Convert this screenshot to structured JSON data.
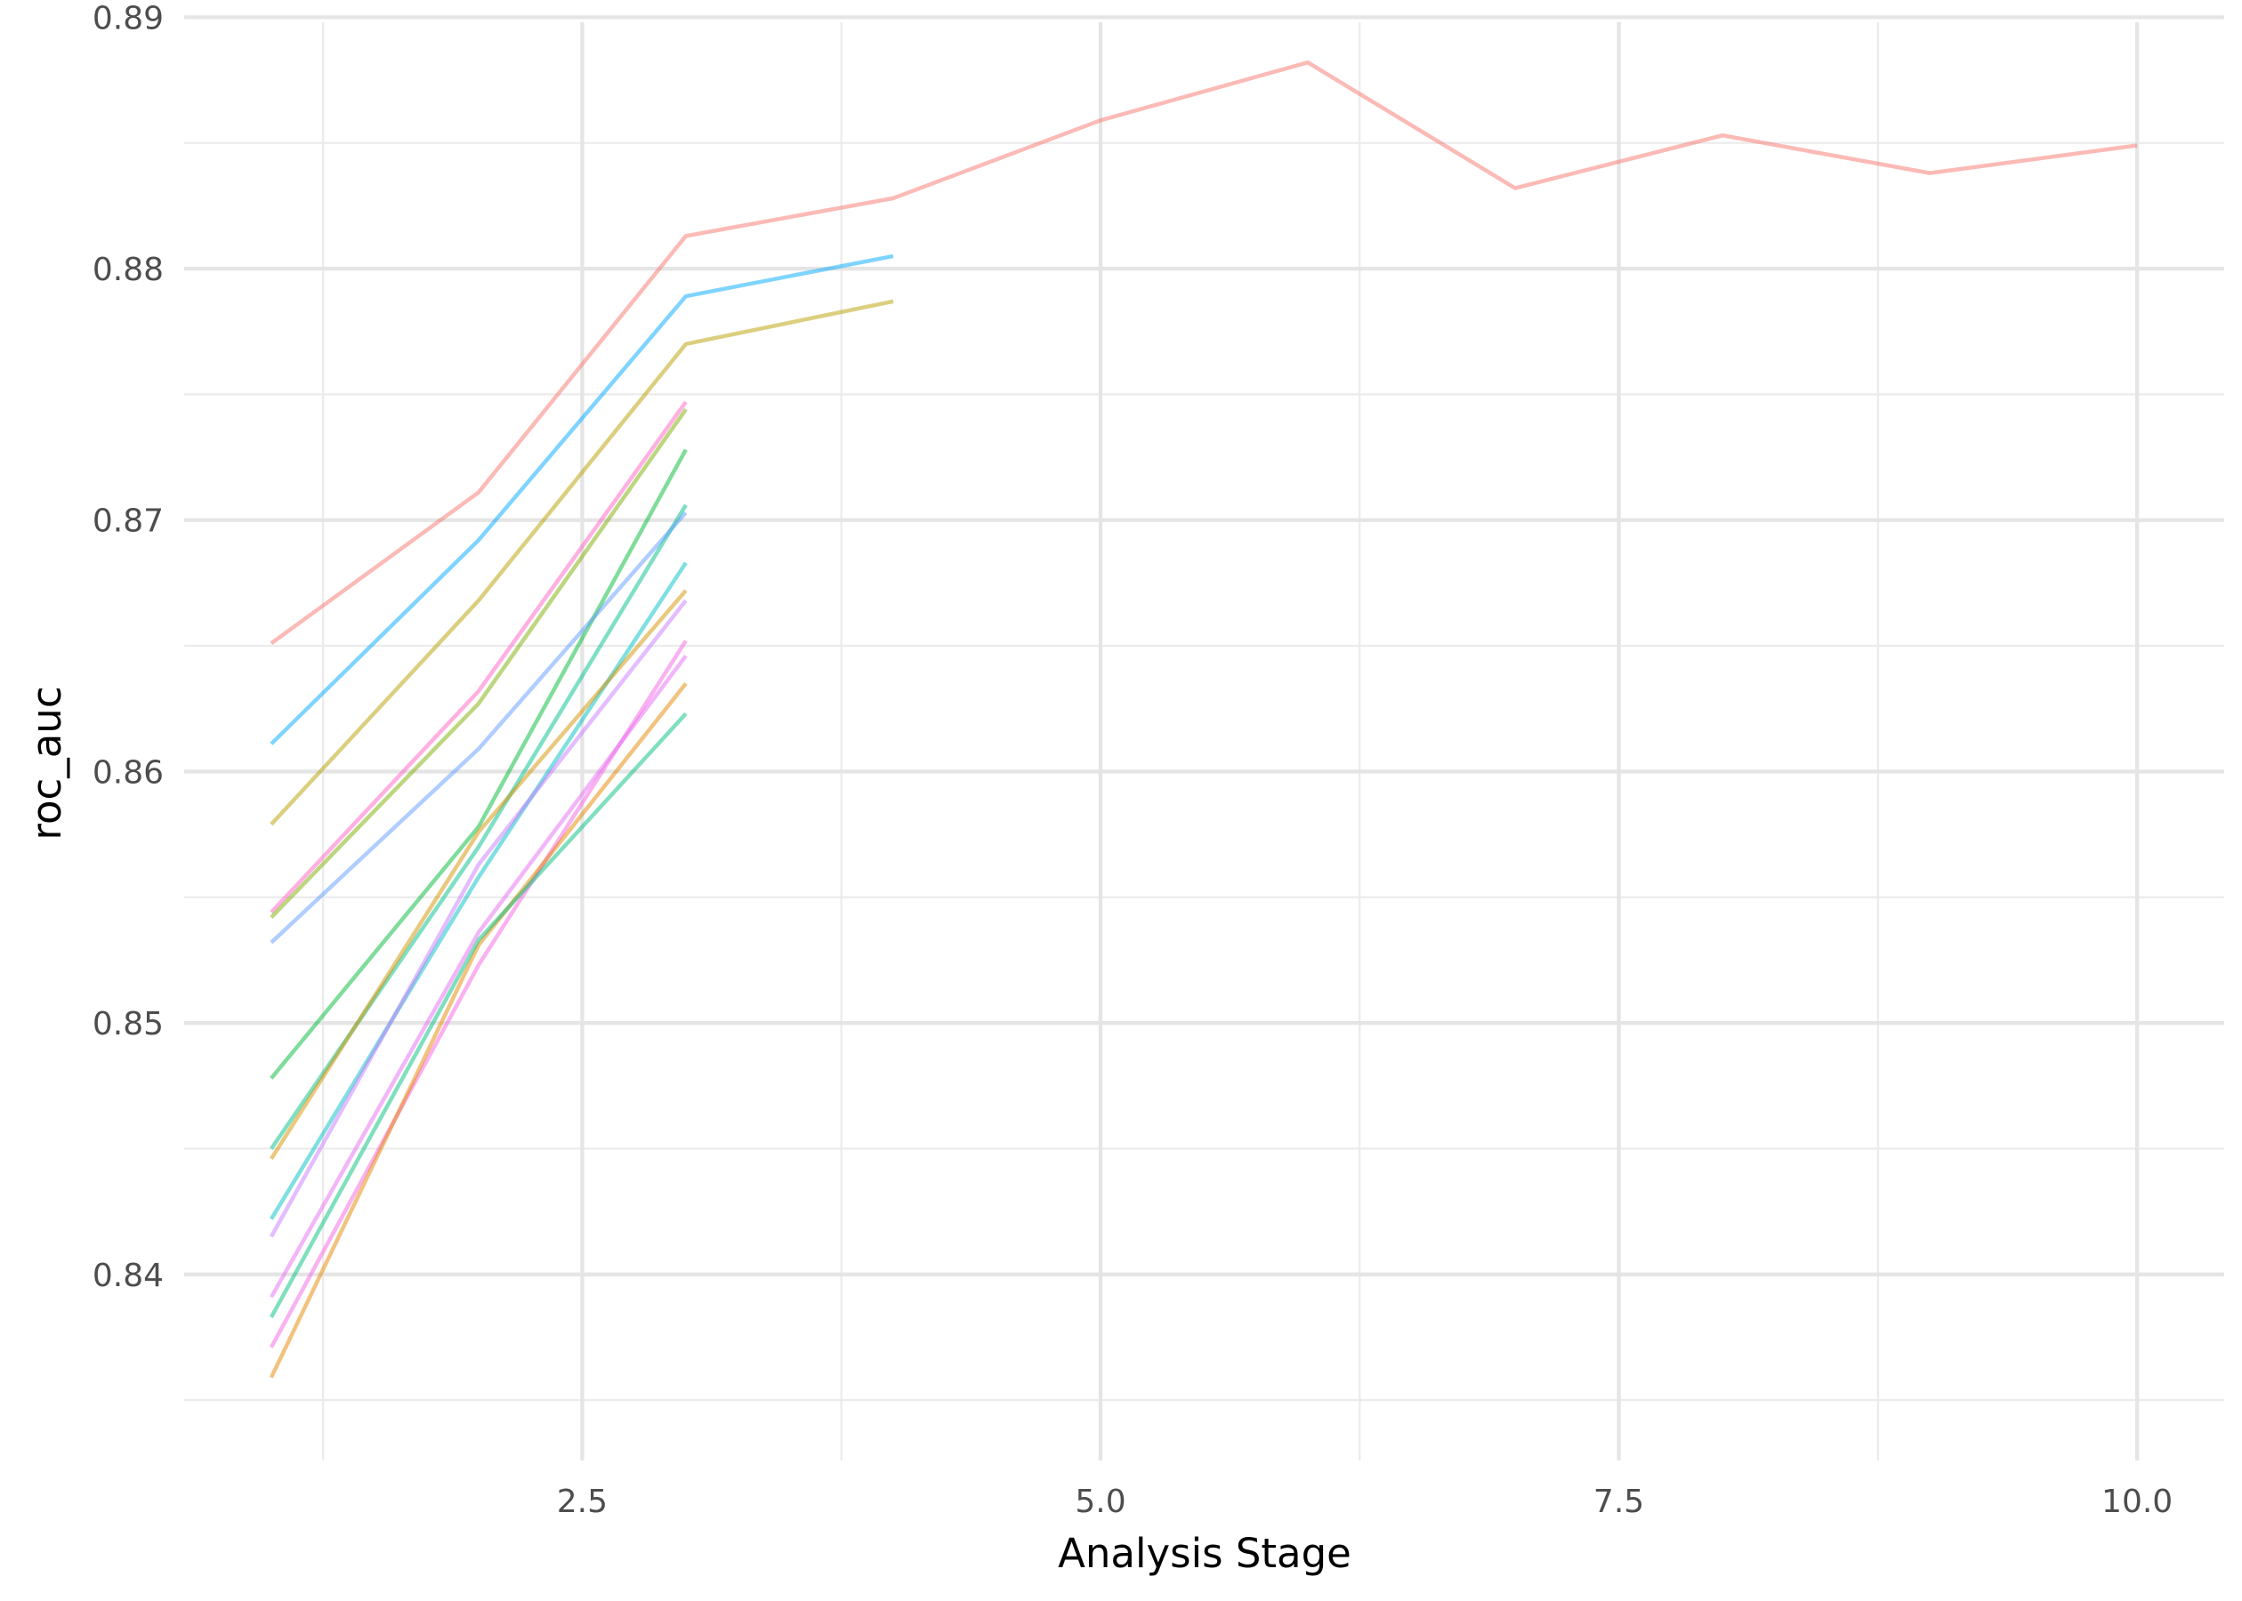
{
  "chart_data": {
    "type": "line",
    "title": "",
    "xlabel": "Analysis Stage",
    "ylabel": "roc_auc",
    "xlim": [
      0.58,
      10.42
    ],
    "ylim": [
      0.8326,
      0.8898
    ],
    "x_ticks": [
      2.5,
      5.0,
      7.5,
      10.0
    ],
    "x_tick_labels": [
      "2.5",
      "5.0",
      "7.5",
      "10.0"
    ],
    "x_minor_ticks": [
      1.25,
      3.75,
      6.25,
      8.75
    ],
    "y_ticks": [
      0.84,
      0.85,
      0.86,
      0.87,
      0.88,
      0.89
    ],
    "y_tick_labels": [
      "0.84",
      "0.85",
      "0.86",
      "0.87",
      "0.88",
      "0.89"
    ],
    "y_minor_ticks": [
      0.835,
      0.845,
      0.855,
      0.865,
      0.875,
      0.885
    ],
    "grid": true,
    "legend": "none",
    "line_opacity": 0.5,
    "series": [
      {
        "color": "#F8766D",
        "x": [
          1,
          2,
          3,
          4,
          5,
          6,
          7,
          8,
          9,
          10
        ],
        "values": [
          0.8651,
          0.8711,
          0.8813,
          0.8828,
          0.8859,
          0.8882,
          0.8832,
          0.8853,
          0.8838,
          0.8849
        ]
      },
      {
        "color": "#00A9FF",
        "x": [
          1,
          2,
          3,
          4
        ],
        "values": [
          0.8611,
          0.8692,
          0.8789,
          0.8805
        ]
      },
      {
        "color": "#B79F00",
        "x": [
          1,
          2,
          3,
          4
        ],
        "values": [
          0.8579,
          0.8668,
          0.877,
          0.8787
        ]
      },
      {
        "color": "#FF61C3",
        "x": [
          1,
          2,
          3
        ],
        "values": [
          0.8544,
          0.8632,
          0.8747
        ]
      },
      {
        "color": "#7CAE00",
        "x": [
          1,
          2,
          3
        ],
        "values": [
          0.8542,
          0.8627,
          0.8744
        ]
      },
      {
        "color": "#00BA38",
        "x": [
          1,
          2,
          3
        ],
        "values": [
          0.8478,
          0.8578,
          0.8728
        ]
      },
      {
        "color": "#00C08B",
        "x": [
          1,
          2,
          3
        ],
        "values": [
          0.845,
          0.857,
          0.8706
        ]
      },
      {
        "color": "#00BFC4",
        "x": [
          1,
          2,
          3
        ],
        "values": [
          0.8422,
          0.8558,
          0.8683
        ]
      },
      {
        "color": "#619CFF",
        "x": [
          1,
          2,
          3
        ],
        "values": [
          0.8532,
          0.8609,
          0.8703
        ]
      },
      {
        "color": "#D39200",
        "x": [
          1,
          2,
          3
        ],
        "values": [
          0.8446,
          0.8576,
          0.8672
        ]
      },
      {
        "color": "#C77CFF",
        "x": [
          1,
          2,
          3
        ],
        "values": [
          0.8415,
          0.8563,
          0.8668
        ]
      },
      {
        "color": "#F564E3",
        "x": [
          1,
          2,
          3
        ],
        "values": [
          0.8371,
          0.8523,
          0.8652
        ]
      },
      {
        "color": "#E76BF3",
        "x": [
          1,
          2,
          3
        ],
        "values": [
          0.8391,
          0.8536,
          0.8646
        ]
      },
      {
        "color": "#E58700",
        "x": [
          1,
          2,
          3
        ],
        "values": [
          0.8359,
          0.8531,
          0.8635
        ]
      },
      {
        "color": "#00BF7D",
        "x": [
          1,
          2,
          3
        ],
        "values": [
          0.8383,
          0.8533,
          0.8623
        ]
      }
    ]
  }
}
